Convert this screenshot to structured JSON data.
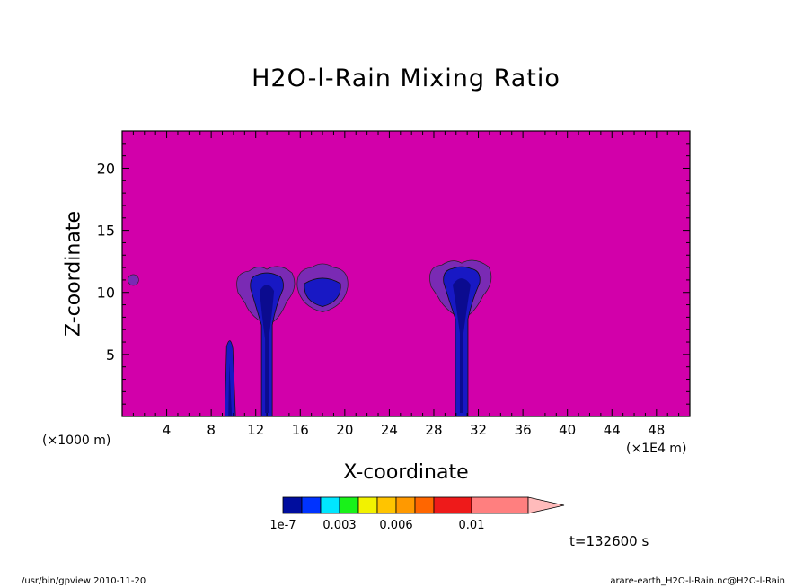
{
  "chart_data": {
    "type": "heatmap",
    "title": "H2O-l-Rain Mixing Ratio",
    "xlabel": "X-coordinate",
    "ylabel": "Z-coordinate",
    "x_unit": "(×1000 m)",
    "x_unit_right": "(×1E4 m)",
    "xlim": [
      0,
      51
    ],
    "ylim": [
      0,
      23
    ],
    "xticks": [
      4,
      8,
      12,
      16,
      20,
      24,
      28,
      32,
      36,
      40,
      44,
      48
    ],
    "yticks": [
      5,
      10,
      15,
      20
    ],
    "background_level": "below 1e-7",
    "features": [
      {
        "name": "small-cell",
        "x": 1,
        "z": 11
      },
      {
        "name": "narrow-column",
        "x": 9.7,
        "z_top": 6.5
      },
      {
        "name": "storm-cell-1",
        "x": 13,
        "z_base": 0,
        "z_top": 12
      },
      {
        "name": "storm-cell-2",
        "x": 18,
        "z_base": 9,
        "z_top": 12.3
      },
      {
        "name": "storm-cell-3",
        "x": 30.5,
        "z_base": 0,
        "z_top": 12.5
      }
    ],
    "colorbar": {
      "colors": [
        "#000d9e",
        "#0033ff",
        "#00e6ff",
        "#19f219",
        "#f2f200",
        "#ffc400",
        "#ff9900",
        "#ff6600",
        "#ee1a1a",
        "#ff7f7f",
        "#ffbbbb"
      ],
      "tick_labels": [
        "1e-7",
        "0.003",
        "0.006",
        "0.01"
      ]
    },
    "timestamp": "t=132600 s"
  },
  "colors": {
    "background": "#d200aa",
    "level1": "#7a2ab4",
    "level2": "#1818c4",
    "level3": "#0b0b8f"
  },
  "footer": {
    "left": "/usr/bin/gpview   2010-11-20",
    "right": "arare-earth_H2O-l-Rain.nc@H2O-l-Rain"
  }
}
